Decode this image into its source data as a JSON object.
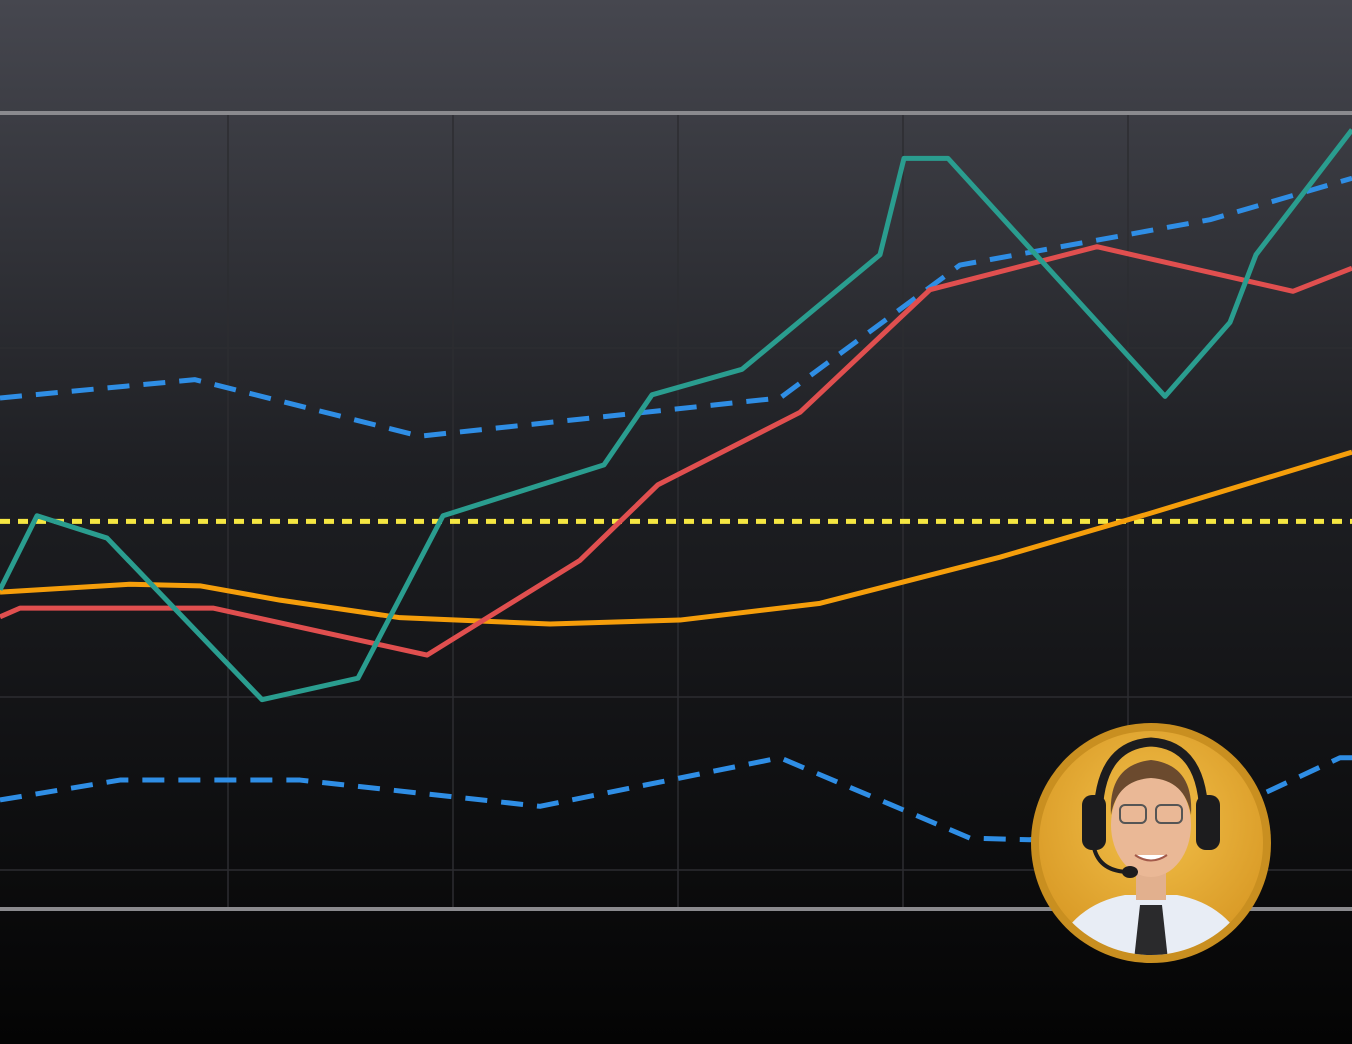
{
  "chart_data": {
    "type": "line",
    "xlim": [
      0,
      1352
    ],
    "ylim": [
      0,
      100
    ],
    "series": [
      {
        "color": "#2f8ee5",
        "dash": "dashed",
        "x": [
          0,
          195,
          420,
          780,
          960,
          1210,
          1352
        ],
        "values": [
          64.2,
          66.5,
          59.4,
          64.2,
          80.9,
          86.6,
          91.8
        ]
      },
      {
        "color": "#2f8ee5",
        "dash": "dashed",
        "x": [
          0,
          120,
          300,
          540,
          780,
          970,
          1030,
          1260,
          1340,
          1352
        ],
        "values": [
          13.7,
          16.2,
          16.2,
          12.9,
          19.0,
          8.9,
          8.7,
          14.3,
          19.0,
          19.0
        ]
      },
      {
        "color": "#f5e642",
        "dash": "dotted",
        "x": [
          0,
          1352
        ],
        "values": [
          48.7,
          48.7
        ]
      },
      {
        "color": "#f59e0b",
        "dash": "solid",
        "x": [
          0,
          130,
          200,
          280,
          400,
          550,
          680,
          820,
          1000,
          1150,
          1352
        ],
        "values": [
          39.8,
          40.8,
          40.6,
          38.8,
          36.6,
          35.8,
          36.3,
          38.4,
          44.2,
          49.7,
          57.4
        ]
      },
      {
        "color": "#e04f4f",
        "dash": "solid",
        "x": [
          0,
          20,
          213,
          427,
          580,
          658,
          800,
          930,
          1097,
          1293,
          1352
        ],
        "values": [
          36.7,
          37.8,
          37.8,
          31.9,
          43.8,
          53.3,
          62.4,
          77.8,
          83.2,
          77.6,
          80.5
        ]
      },
      {
        "color": "#2a9d8f",
        "dash": "solid",
        "x": [
          0,
          37,
          107,
          262,
          358,
          443,
          604,
          652,
          742,
          880,
          904,
          948,
          1165,
          1230,
          1256,
          1352
        ],
        "values": [
          40.1,
          49.4,
          46.6,
          26.3,
          29.0,
          49.4,
          55.8,
          64.6,
          67.8,
          82.2,
          94.3,
          94.3,
          64.4,
          73.7,
          82.2,
          97.9
        ]
      }
    ]
  }
}
